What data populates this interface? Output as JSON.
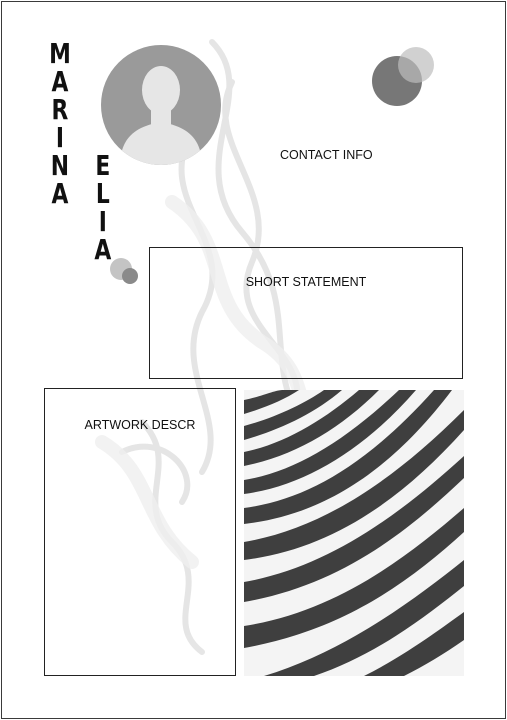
{
  "name": {
    "first": [
      "M",
      "A",
      "R",
      "I",
      "N",
      "A"
    ],
    "last": [
      "E",
      "L",
      "I",
      "A"
    ]
  },
  "sections": {
    "contact": "CONTACT INFO",
    "statement": "SHORT STATEMENT",
    "artwork": "ARTWORK DESCR"
  },
  "icons": {
    "avatar": "person-silhouette-icon"
  },
  "colors": {
    "text": "#111111",
    "border": "#222222",
    "avatar_bg": "#9a9a9a",
    "avatar_figure": "#e6e6e6",
    "stripe": "#3f3f3f",
    "circle_dark": "#777777",
    "circle_light": "#bdbdbd"
  }
}
